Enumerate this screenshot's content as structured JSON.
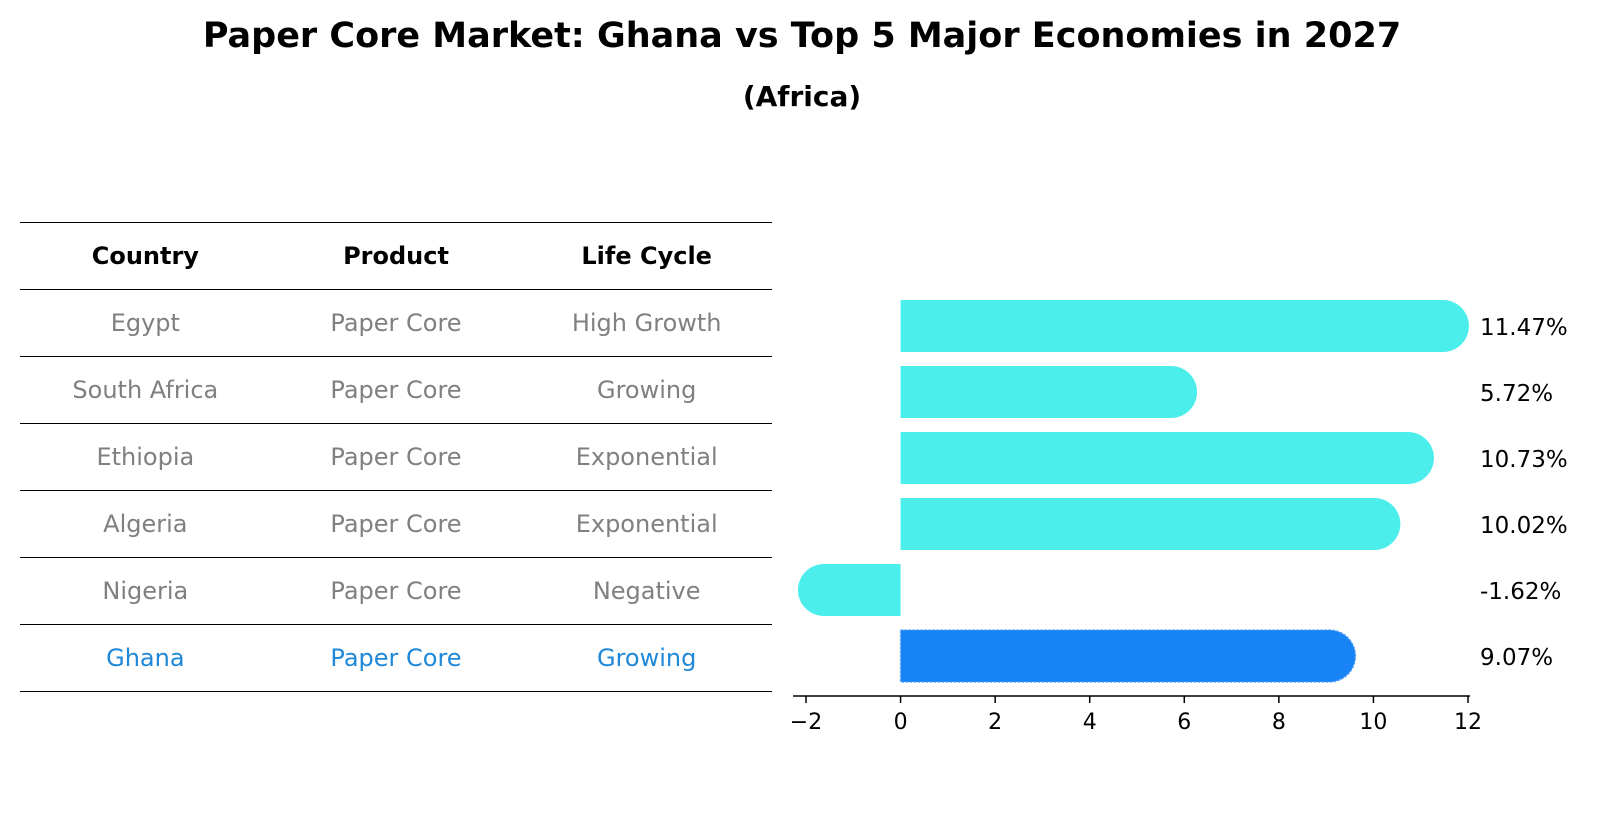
{
  "title": "Paper Core Market: Ghana vs Top 5 Major Economies in 2027",
  "subtitle": "(Africa)",
  "table": {
    "headers": [
      "Country",
      "Product",
      "Life Cycle"
    ],
    "rows": [
      [
        "Egypt",
        "Paper Core",
        "High Growth"
      ],
      [
        "South Africa",
        "Paper Core",
        "Growing"
      ],
      [
        "Ethiopia",
        "Paper Core",
        "Exponential"
      ],
      [
        "Algeria",
        "Paper Core",
        "Exponential"
      ],
      [
        "Nigeria",
        "Paper Core",
        "Negative"
      ],
      [
        "Ghana",
        "Paper Core",
        "Growing"
      ]
    ]
  },
  "chart_data": {
    "type": "bar",
    "orientation": "horizontal",
    "categories": [
      "Egypt",
      "South Africa",
      "Ethiopia",
      "Algeria",
      "Nigeria",
      "Ghana"
    ],
    "values": [
      11.47,
      5.72,
      10.73,
      10.02,
      -1.62,
      9.07
    ],
    "value_labels": [
      "11.47%",
      "5.72%",
      "10.73%",
      "10.02%",
      "-1.62%",
      "9.07%"
    ],
    "xlim": [
      -2,
      12
    ],
    "xticks": [
      -2,
      0,
      2,
      4,
      6,
      8,
      10,
      12
    ],
    "xtick_labels": [
      "−2",
      "0",
      "2",
      "4",
      "6",
      "8",
      "10",
      "12"
    ],
    "highlight": "Ghana",
    "colors": {
      "default": "#4beeeb",
      "highlight": "#1783f4"
    }
  }
}
